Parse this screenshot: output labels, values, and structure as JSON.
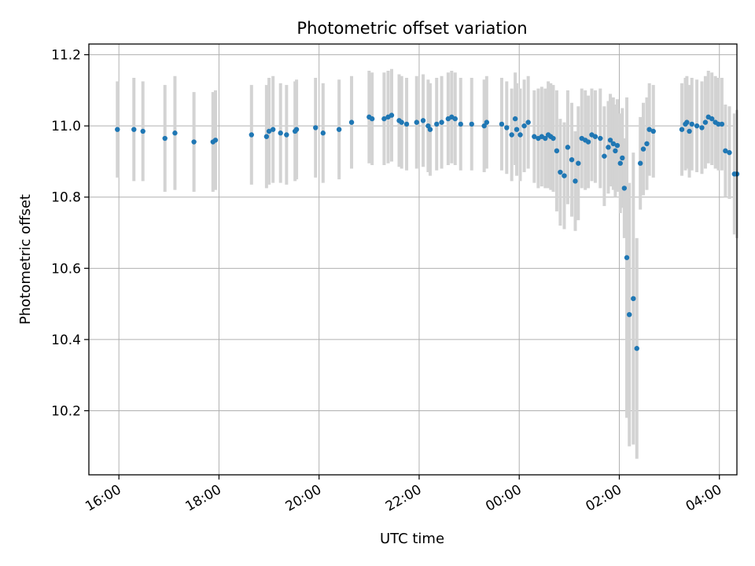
{
  "chart_data": {
    "type": "scatter",
    "title": "Photometric offset variation",
    "xlabel": "UTC time",
    "ylabel": "Photometric offset",
    "x_unit": "hours_since_16:00",
    "xlim": [
      -0.6,
      12.35
    ],
    "ylim": [
      10.02,
      11.23
    ],
    "grid": true,
    "x_ticks": [
      {
        "value": 0,
        "label": "16:00"
      },
      {
        "value": 2,
        "label": "18:00"
      },
      {
        "value": 4,
        "label": "20:00"
      },
      {
        "value": 6,
        "label": "22:00"
      },
      {
        "value": 8,
        "label": "00:00"
      },
      {
        "value": 10,
        "label": "02:00"
      },
      {
        "value": 12,
        "label": "04:00"
      }
    ],
    "y_ticks": [
      {
        "value": 10.2,
        "label": "10.2"
      },
      {
        "value": 10.4,
        "label": "10.4"
      },
      {
        "value": 10.6,
        "label": "10.6"
      },
      {
        "value": 10.8,
        "label": "10.8"
      },
      {
        "value": 11.0,
        "label": "11.0"
      },
      {
        "value": 11.2,
        "label": "11.2"
      }
    ],
    "colors": {
      "point": "#1f77b4",
      "errorbar": "#d3d3d3",
      "grid": "#b0b0b0"
    },
    "series": [
      {
        "x": [
          -0.03,
          0.3,
          0.48,
          0.92,
          1.12,
          1.5,
          1.88,
          1.93,
          2.65,
          2.95,
          3.0,
          3.08,
          3.23,
          3.35,
          3.52,
          3.55,
          3.93,
          4.08,
          4.4,
          4.65,
          5.0,
          5.06,
          5.3,
          5.38,
          5.45,
          5.6,
          5.65,
          5.75,
          5.95,
          6.08,
          6.18,
          6.22,
          6.35,
          6.45,
          6.58,
          6.65,
          6.72,
          6.83,
          7.05,
          7.3,
          7.35,
          7.65,
          7.75,
          7.85,
          7.92,
          7.95,
          8.02,
          8.1,
          8.18,
          8.3,
          8.38,
          8.45,
          8.52,
          8.58,
          8.63,
          8.68,
          8.75,
          8.82,
          8.9,
          8.97,
          9.05,
          9.12,
          9.18,
          9.25,
          9.32,
          9.38,
          9.45,
          9.52,
          9.62,
          9.7,
          9.78,
          9.82,
          9.88,
          9.92,
          9.96,
          10.02,
          10.06,
          10.1,
          10.15,
          10.2,
          10.28,
          10.35,
          10.42,
          10.48,
          10.55,
          10.6,
          10.68,
          11.25,
          11.32,
          11.35,
          11.4,
          11.45,
          11.55,
          11.65,
          11.72,
          11.78,
          11.85,
          11.92,
          11.98,
          12.05,
          12.12,
          12.2,
          12.3,
          12.35
        ],
        "y": [
          10.99,
          10.99,
          10.985,
          10.965,
          10.98,
          10.955,
          10.955,
          10.96,
          10.975,
          10.97,
          10.985,
          10.99,
          10.98,
          10.975,
          10.985,
          10.99,
          10.995,
          10.98,
          10.99,
          11.01,
          11.025,
          11.02,
          11.02,
          11.025,
          11.03,
          11.015,
          11.01,
          11.005,
          11.01,
          11.015,
          11.0,
          10.99,
          11.005,
          11.01,
          11.02,
          11.025,
          11.02,
          11.005,
          11.005,
          11.0,
          11.01,
          11.005,
          10.995,
          10.975,
          11.02,
          10.99,
          10.975,
          11.0,
          11.01,
          10.97,
          10.965,
          10.97,
          10.965,
          10.975,
          10.97,
          10.965,
          10.93,
          10.87,
          10.86,
          10.94,
          10.905,
          10.845,
          10.895,
          10.965,
          10.96,
          10.955,
          10.975,
          10.97,
          10.965,
          10.915,
          10.94,
          10.96,
          10.95,
          10.93,
          10.945,
          10.895,
          10.91,
          10.825,
          10.63,
          10.47,
          10.515,
          10.375,
          10.895,
          10.935,
          10.95,
          10.99,
          10.985,
          10.99,
          11.005,
          11.01,
          10.985,
          11.005,
          11.0,
          10.995,
          11.01,
          11.025,
          11.02,
          11.01,
          11.005,
          11.005,
          10.93,
          10.925,
          10.865,
          10.865
        ],
        "yerr": [
          0.135,
          0.145,
          0.14,
          0.15,
          0.16,
          0.14,
          0.14,
          0.14,
          0.14,
          0.145,
          0.15,
          0.15,
          0.14,
          0.14,
          0.14,
          0.14,
          0.14,
          0.14,
          0.14,
          0.13,
          0.13,
          0.13,
          0.13,
          0.13,
          0.13,
          0.13,
          0.13,
          0.13,
          0.13,
          0.13,
          0.13,
          0.13,
          0.13,
          0.13,
          0.13,
          0.13,
          0.13,
          0.13,
          0.13,
          0.13,
          0.13,
          0.13,
          0.13,
          0.13,
          0.13,
          0.13,
          0.13,
          0.13,
          0.13,
          0.13,
          0.14,
          0.14,
          0.14,
          0.15,
          0.15,
          0.15,
          0.17,
          0.15,
          0.15,
          0.16,
          0.16,
          0.14,
          0.16,
          0.14,
          0.14,
          0.13,
          0.13,
          0.13,
          0.14,
          0.14,
          0.13,
          0.13,
          0.13,
          0.13,
          0.13,
          0.14,
          0.14,
          0.14,
          0.45,
          0.37,
          0.41,
          0.31,
          0.13,
          0.13,
          0.13,
          0.13,
          0.13,
          0.13,
          0.13,
          0.13,
          0.13,
          0.13,
          0.13,
          0.13,
          0.13,
          0.13,
          0.13,
          0.13,
          0.13,
          0.13,
          0.13,
          0.13,
          0.17,
          0.18
        ]
      }
    ]
  }
}
